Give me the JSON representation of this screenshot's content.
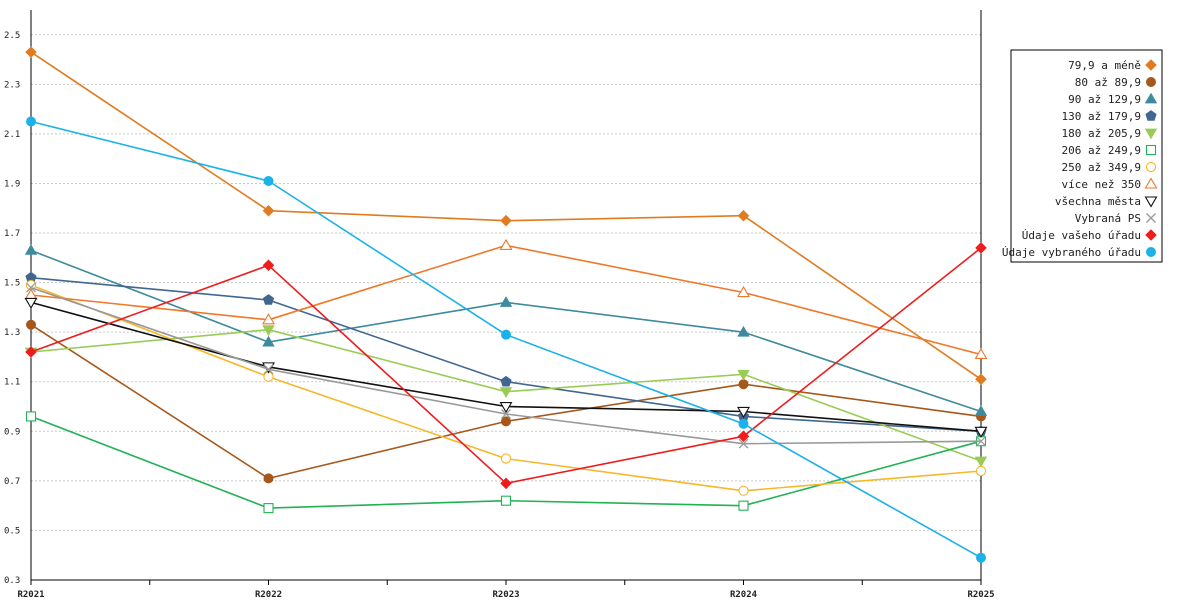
{
  "chart_data": {
    "type": "line",
    "title": "",
    "xlabel": "",
    "ylabel": "",
    "categories": [
      "R2021",
      "R2022",
      "R2023",
      "R2024",
      "R2025"
    ],
    "ylim": [
      0.3,
      2.6
    ],
    "yticks": [
      "0.3",
      "0.5",
      "0.7",
      "0.9",
      "1.1",
      "1.3",
      "1.5",
      "1.7",
      "1.9",
      "2.1",
      "2.3",
      "2.5"
    ],
    "grid": true,
    "legend_position": "right",
    "series": [
      {
        "name": "79,9 a méně",
        "color": "#e07b1f",
        "marker": "diamond",
        "filled": true,
        "values": [
          2.43,
          1.79,
          1.75,
          1.77,
          1.11
        ]
      },
      {
        "name": "80 až 89,9",
        "color": "#a6581c",
        "marker": "circle",
        "filled": true,
        "values": [
          1.33,
          0.71,
          0.94,
          1.09,
          0.96
        ]
      },
      {
        "name": "90 až 129,9",
        "color": "#3e8a9e",
        "marker": "triangle-up",
        "filled": true,
        "values": [
          1.63,
          1.26,
          1.42,
          1.3,
          0.98
        ]
      },
      {
        "name": "130 až 179,9",
        "color": "#41668f",
        "marker": "pentagon",
        "filled": true,
        "values": [
          1.52,
          1.43,
          1.1,
          0.96,
          0.9
        ]
      },
      {
        "name": "180 až 205,9",
        "color": "#99cc55",
        "marker": "triangle-down",
        "filled": true,
        "values": [
          1.22,
          1.31,
          1.06,
          1.13,
          0.78
        ]
      },
      {
        "name": "206 až 249,9",
        "color": "#22b255",
        "marker": "square",
        "filled": false,
        "values": [
          0.96,
          0.59,
          0.62,
          0.6,
          0.86
        ]
      },
      {
        "name": "250 až 349,9",
        "color": "#f5b82a",
        "marker": "circle",
        "filled": false,
        "values": [
          1.49,
          1.12,
          0.79,
          0.66,
          0.74
        ]
      },
      {
        "name": "více než 350",
        "color": "#f07828",
        "marker": "triangle-up",
        "filled": false,
        "values": [
          1.45,
          1.35,
          1.65,
          1.46,
          1.21
        ]
      },
      {
        "name": "všechna města",
        "color": "#111111",
        "marker": "triangle-down",
        "filled": false,
        "values": [
          1.42,
          1.16,
          1.0,
          0.98,
          0.9
        ]
      },
      {
        "name": "Vybraná PS",
        "color": "#999999",
        "marker": "cross",
        "filled": false,
        "values": [
          1.48,
          1.15,
          0.97,
          0.85,
          0.86
        ]
      },
      {
        "name": "Údaje vašeho úřadu",
        "color": "#ee1c1c",
        "marker": "diamond",
        "filled": true,
        "values": [
          1.22,
          1.57,
          0.69,
          0.88,
          1.64
        ]
      },
      {
        "name": "Údaje vybraného úřadu",
        "color": "#1bb1e9",
        "marker": "circle",
        "filled": true,
        "values": [
          2.15,
          1.91,
          1.29,
          0.93,
          0.39
        ]
      }
    ]
  }
}
